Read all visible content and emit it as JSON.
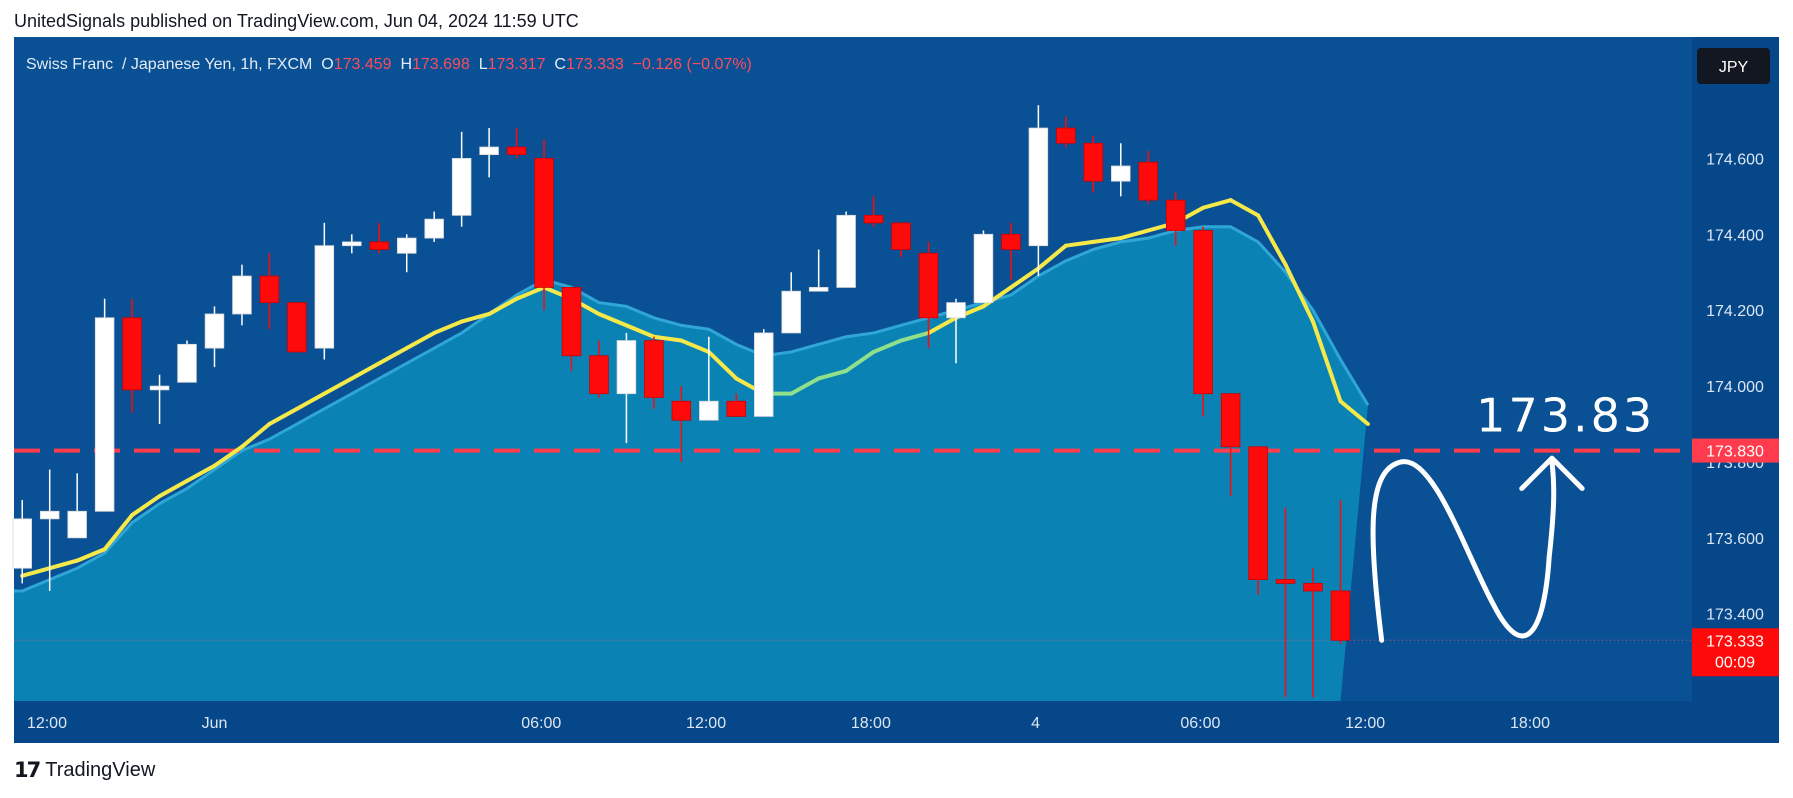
{
  "header": {
    "published": "UnitedSignals published on TradingView.com, Jun 04, 2024 11:59 UTC"
  },
  "footer": {
    "brand": "TradingView",
    "logo_icon": "tradingview-logo-icon"
  },
  "colors": {
    "background": "#0a5094",
    "plot_background": "#0a5094",
    "axis_background": "#06478a",
    "area_fill": "#0a82b4",
    "area_line": "#2fa6d6",
    "ma_line": "#f5e94a",
    "ma_line_rising": "#8fe08a",
    "up_candle": "#ffffff",
    "down_candle": "#ff0a0a",
    "target_line": "#ff3b4e",
    "annotation": "#ffffff"
  },
  "chart_data": {
    "type": "candlestick",
    "symbol": "Swiss Franc  / Japanese Yen, 1h, FXCM",
    "legend": {
      "o_label": "O",
      "o": "173.459",
      "h_label": "H",
      "h": "173.698",
      "l_label": "L",
      "l": "173.317",
      "c_label": "C",
      "c": "173.333",
      "change": "−0.126 (−0.07%)"
    },
    "currency_badge": "JPY",
    "y_ticks": [
      "174.600",
      "174.400",
      "174.200",
      "174.000",
      "173.800",
      "173.600",
      "173.400"
    ],
    "y_tick_values": [
      174.6,
      174.4,
      174.2,
      174.0,
      173.8,
      173.6,
      173.4
    ],
    "x_ticks": [
      {
        "label": "12:00",
        "index": 0.9
      },
      {
        "label": "Jun",
        "index": 7
      },
      {
        "label": "06:00",
        "index": 18.9
      },
      {
        "label": "12:00",
        "index": 24.9
      },
      {
        "label": "18:00",
        "index": 30.9
      },
      {
        "label": "4",
        "index": 36.9
      },
      {
        "label": "06:00",
        "index": 42.9
      },
      {
        "label": "12:00",
        "index": 48.9
      },
      {
        "label": "18:00",
        "index": 54.9
      }
    ],
    "ylim": [
      173.17,
      174.92
    ],
    "xlim": [
      -0.3,
      60.8
    ],
    "candles": [
      {
        "o": 173.52,
        "h": 173.7,
        "l": 173.48,
        "c": 173.65
      },
      {
        "o": 173.65,
        "h": 173.78,
        "l": 173.46,
        "c": 173.67
      },
      {
        "o": 173.6,
        "h": 173.77,
        "l": 173.6,
        "c": 173.67
      },
      {
        "o": 173.67,
        "h": 174.23,
        "l": 173.67,
        "c": 174.18
      },
      {
        "o": 174.18,
        "h": 174.23,
        "l": 173.93,
        "c": 173.99
      },
      {
        "o": 173.99,
        "h": 174.03,
        "l": 173.9,
        "c": 174.0
      },
      {
        "o": 174.01,
        "h": 174.12,
        "l": 174.01,
        "c": 174.11
      },
      {
        "o": 174.1,
        "h": 174.21,
        "l": 174.05,
        "c": 174.19
      },
      {
        "o": 174.19,
        "h": 174.32,
        "l": 174.16,
        "c": 174.29
      },
      {
        "o": 174.29,
        "h": 174.35,
        "l": 174.15,
        "c": 174.22
      },
      {
        "o": 174.22,
        "h": 174.22,
        "l": 174.1,
        "c": 174.09
      },
      {
        "o": 174.1,
        "h": 174.43,
        "l": 174.07,
        "c": 174.37
      },
      {
        "o": 174.37,
        "h": 174.4,
        "l": 174.35,
        "c": 174.38
      },
      {
        "o": 174.38,
        "h": 174.43,
        "l": 174.35,
        "c": 174.36
      },
      {
        "o": 174.35,
        "h": 174.4,
        "l": 174.3,
        "c": 174.39
      },
      {
        "o": 174.39,
        "h": 174.46,
        "l": 174.38,
        "c": 174.44
      },
      {
        "o": 174.45,
        "h": 174.67,
        "l": 174.42,
        "c": 174.6
      },
      {
        "o": 174.61,
        "h": 174.68,
        "l": 174.55,
        "c": 174.63
      },
      {
        "o": 174.63,
        "h": 174.68,
        "l": 174.6,
        "c": 174.61
      },
      {
        "o": 174.6,
        "h": 174.65,
        "l": 174.2,
        "c": 174.26
      },
      {
        "o": 174.26,
        "h": 174.26,
        "l": 174.04,
        "c": 174.08
      },
      {
        "o": 174.08,
        "h": 174.12,
        "l": 173.97,
        "c": 173.98
      },
      {
        "o": 173.98,
        "h": 174.14,
        "l": 173.85,
        "c": 174.12
      },
      {
        "o": 174.12,
        "h": 174.13,
        "l": 173.94,
        "c": 173.97
      },
      {
        "o": 173.96,
        "h": 174.0,
        "l": 173.8,
        "c": 173.91
      },
      {
        "o": 173.91,
        "h": 174.13,
        "l": 173.91,
        "c": 173.96
      },
      {
        "o": 173.96,
        "h": 173.98,
        "l": 173.92,
        "c": 173.92
      },
      {
        "o": 173.92,
        "h": 174.15,
        "l": 173.92,
        "c": 174.14
      },
      {
        "o": 174.14,
        "h": 174.3,
        "l": 174.14,
        "c": 174.25
      },
      {
        "o": 174.25,
        "h": 174.36,
        "l": 174.25,
        "c": 174.26
      },
      {
        "o": 174.26,
        "h": 174.46,
        "l": 174.26,
        "c": 174.45
      },
      {
        "o": 174.45,
        "h": 174.5,
        "l": 174.42,
        "c": 174.43
      },
      {
        "o": 174.43,
        "h": 174.43,
        "l": 174.34,
        "c": 174.36
      },
      {
        "o": 174.35,
        "h": 174.38,
        "l": 174.1,
        "c": 174.18
      },
      {
        "o": 174.18,
        "h": 174.23,
        "l": 174.06,
        "c": 174.22
      },
      {
        "o": 174.22,
        "h": 174.41,
        "l": 174.22,
        "c": 174.4
      },
      {
        "o": 174.4,
        "h": 174.43,
        "l": 174.28,
        "c": 174.36
      },
      {
        "o": 174.37,
        "h": 174.74,
        "l": 174.29,
        "c": 174.68
      },
      {
        "o": 174.68,
        "h": 174.71,
        "l": 174.63,
        "c": 174.64
      },
      {
        "o": 174.64,
        "h": 174.66,
        "l": 174.51,
        "c": 174.54
      },
      {
        "o": 174.54,
        "h": 174.64,
        "l": 174.5,
        "c": 174.58
      },
      {
        "o": 174.59,
        "h": 174.62,
        "l": 174.48,
        "c": 174.49
      },
      {
        "o": 174.49,
        "h": 174.51,
        "l": 174.37,
        "c": 174.41
      },
      {
        "o": 174.41,
        "h": 174.42,
        "l": 173.92,
        "c": 173.98
      },
      {
        "o": 173.98,
        "h": 173.98,
        "l": 173.71,
        "c": 173.84
      },
      {
        "o": 173.84,
        "h": 173.84,
        "l": 173.45,
        "c": 173.49
      },
      {
        "o": 173.49,
        "h": 173.68,
        "l": 173.18,
        "c": 173.48
      },
      {
        "o": 173.48,
        "h": 173.52,
        "l": 173.18,
        "c": 173.46
      },
      {
        "o": 173.46,
        "h": 173.7,
        "l": 173.32,
        "c": 173.33
      }
    ],
    "ma_series": [
      173.5,
      173.52,
      173.54,
      173.57,
      173.66,
      173.71,
      173.75,
      173.79,
      173.84,
      173.9,
      173.94,
      173.98,
      174.02,
      174.06,
      174.1,
      174.14,
      174.17,
      174.19,
      174.23,
      174.26,
      174.23,
      174.19,
      174.16,
      174.13,
      174.12,
      174.09,
      174.02,
      173.98,
      173.98,
      174.02,
      174.04,
      174.09,
      174.12,
      174.14,
      174.18,
      174.21,
      174.26,
      174.31,
      174.37,
      174.38,
      174.39,
      174.41,
      174.43,
      174.47,
      174.49,
      174.45,
      174.32,
      174.17,
      173.96,
      173.9
    ],
    "area_series": [
      173.46,
      173.49,
      173.52,
      173.56,
      173.64,
      173.69,
      173.73,
      173.78,
      173.83,
      173.86,
      173.9,
      173.94,
      173.98,
      174.02,
      174.06,
      174.1,
      174.14,
      174.19,
      174.24,
      174.28,
      174.26,
      174.22,
      174.21,
      174.18,
      174.16,
      174.15,
      174.11,
      174.08,
      174.09,
      174.11,
      174.13,
      174.14,
      174.16,
      174.18,
      174.2,
      174.22,
      174.24,
      174.29,
      174.33,
      174.36,
      174.38,
      174.39,
      174.41,
      174.42,
      174.42,
      174.38,
      174.3,
      174.2,
      174.07,
      173.95
    ],
    "target_level": 173.83,
    "target_label": "173.83",
    "target_axis_label": "173.830",
    "last_price_label": "173.333",
    "countdown": "00:09"
  }
}
